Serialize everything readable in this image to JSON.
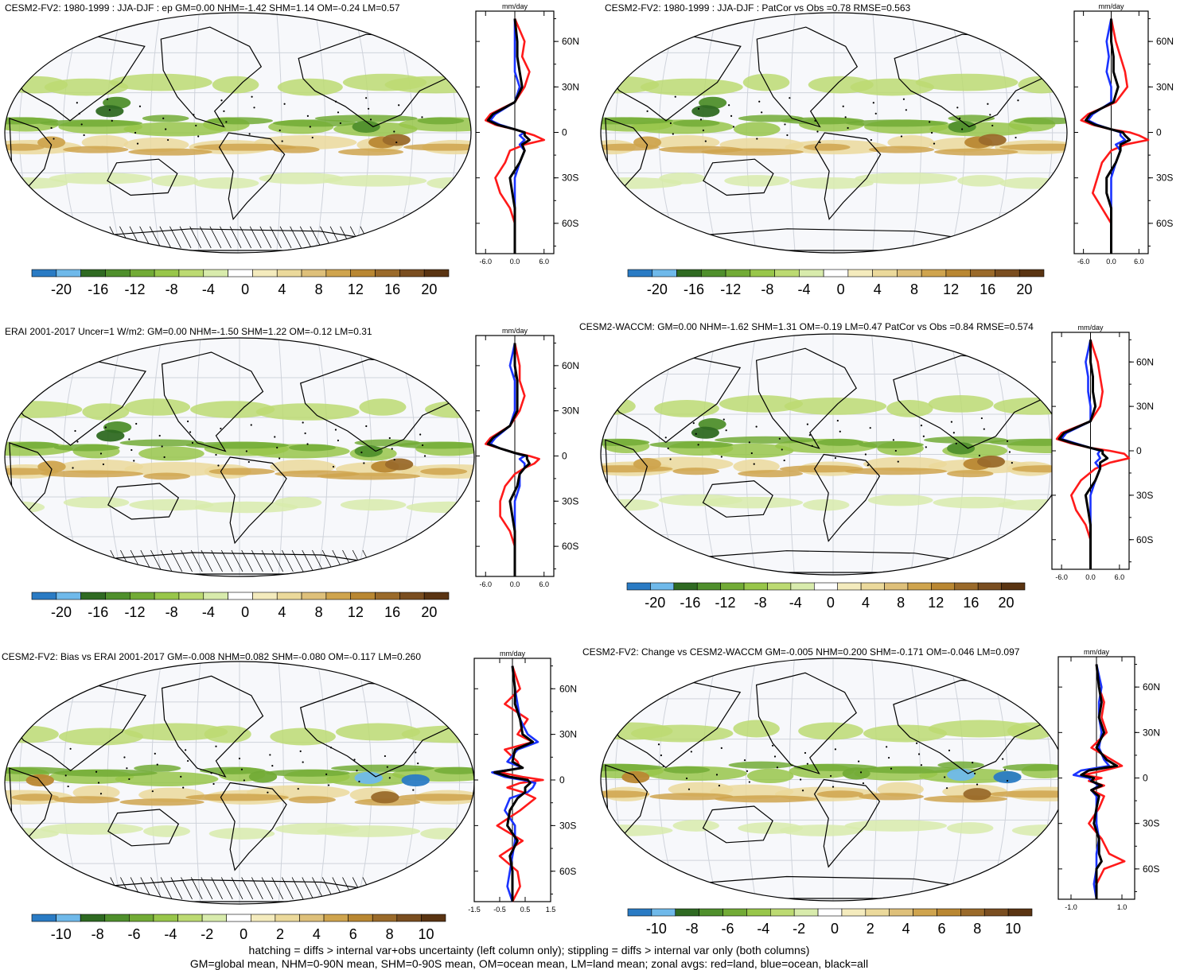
{
  "figure": {
    "footer": [
      "hatching = diffs > internal var+obs uncertainty (left column only); stippling = diffs > internal var only (both columns)",
      "GM=global mean, NHM=0-90N mean, SHM=0-90S mean, OM=ocean mean, LM=land mean; zonal avgs: red=land, blue=ocean, black=all"
    ],
    "zonal_units": "mm/day",
    "lat_ticks": [
      "60N",
      "30N",
      "0",
      "30S",
      "60S"
    ],
    "line_colors": {
      "land": "#ff1a1a",
      "ocean": "#1a33ff",
      "all": "#000000"
    },
    "palette": [
      "#2a7bc4",
      "#6fb9ea",
      "#2f6a22",
      "#4f8f2c",
      "#72ab36",
      "#98c64a",
      "#bcda72",
      "#d8ebac",
      "#ffffff",
      "#f4ebbd",
      "#ebd99b",
      "#dec07a",
      "#cfa44e",
      "#b98732",
      "#9a6a2a",
      "#7a4e20",
      "#5a3412"
    ]
  },
  "chart_data": [
    {
      "type": "heatmap",
      "title": "CESM2-FV2: 1980-1999 : JJA-DJF : ep GM=0.00 NHM=-1.42 SHM=1.14 OM=-0.24 LM=0.57",
      "colorbar_labels": [
        "-20",
        "-16",
        "-12",
        "-8",
        "-4",
        "0",
        "4",
        "8",
        "12",
        "16",
        "20"
      ],
      "zonal": {
        "xticks": [
          "-6.0",
          "0.0",
          "6.0"
        ],
        "xlim": [
          -8,
          8
        ],
        "ylim": [
          -80,
          80
        ],
        "lat": [
          75,
          60,
          50,
          40,
          30,
          20,
          12,
          8,
          5,
          2,
          0,
          -2,
          -5,
          -8,
          -12,
          -20,
          -30,
          -40,
          -50,
          -60,
          -70,
          -80
        ],
        "series": [
          {
            "name": "land",
            "values": [
              0,
              2,
              1.5,
              3,
              2,
              0,
              -5,
              -6,
              -4,
              0,
              2,
              4,
              6,
              2,
              -1,
              -2,
              -4,
              -3,
              -1,
              0,
              0,
              0
            ]
          },
          {
            "name": "ocean",
            "values": [
              0,
              0,
              0,
              0,
              1,
              0,
              -4,
              -5,
              -3,
              0,
              2,
              1,
              2,
              1,
              2,
              1,
              0,
              0,
              0,
              0,
              0,
              0
            ]
          },
          {
            "name": "all",
            "values": [
              0,
              0.5,
              0.5,
              1,
              1.5,
              0,
              -4.5,
              -5.5,
              -3.5,
              0,
              2,
              2,
              3,
              1.5,
              2,
              1,
              -1,
              -0.5,
              0,
              0,
              0,
              0
            ]
          }
        ]
      }
    },
    {
      "type": "heatmap",
      "title": "CESM2-FV2: 1980-1999 : JJA-DJF : PatCor vs Obs =0.78 RMSE=0.563",
      "colorbar_labels": [
        "-20",
        "-16",
        "-12",
        "-8",
        "-4",
        "0",
        "4",
        "8",
        "12",
        "16",
        "20"
      ],
      "zonal": {
        "xticks": [
          "-6.0",
          "0.0",
          "6.0"
        ],
        "xlim": [
          -8,
          8
        ],
        "ylim": [
          -80,
          80
        ],
        "lat": [
          75,
          60,
          50,
          40,
          30,
          20,
          12,
          8,
          5,
          2,
          0,
          -2,
          -5,
          -8,
          -12,
          -20,
          -30,
          -40,
          -50,
          -60,
          -70,
          -80
        ],
        "series": [
          {
            "name": "land",
            "values": [
              0,
              1,
              2,
              3,
              3.5,
              1,
              -5,
              -6.5,
              -4,
              0,
              4,
              6,
              8,
              3,
              0,
              -2,
              -3,
              -4,
              -2,
              0,
              0,
              0
            ]
          },
          {
            "name": "ocean",
            "values": [
              0,
              -1,
              -0.5,
              -1,
              0,
              0,
              -4,
              -5,
              -3,
              0,
              2,
              2,
              3,
              1,
              2,
              1,
              0,
              0,
              0,
              0,
              0,
              0
            ]
          },
          {
            "name": "all",
            "values": [
              0,
              0,
              0.5,
              0.5,
              1.5,
              0.5,
              -4.5,
              -5.5,
              -3.5,
              0,
              2.5,
              3,
              4,
              2,
              2,
              1,
              -1,
              -1,
              0,
              0,
              0,
              0
            ]
          }
        ]
      }
    },
    {
      "type": "heatmap",
      "title": "ERAI 2001-2017 Uncer=1 W/m2: GM=0.00 NHM=-1.50 SHM=1.22 OM=-0.12 LM=0.31",
      "colorbar_labels": [
        "-20",
        "-16",
        "-12",
        "-8",
        "-4",
        "0",
        "4",
        "8",
        "12",
        "16",
        "20"
      ],
      "zonal": {
        "xticks": [
          "-6.0",
          "0.0",
          "6.0"
        ],
        "xlim": [
          -8,
          8
        ],
        "ylim": [
          -80,
          80
        ],
        "lat": [
          75,
          60,
          50,
          40,
          30,
          20,
          12,
          8,
          5,
          2,
          0,
          -2,
          -5,
          -8,
          -12,
          -20,
          -30,
          -40,
          -50,
          -60,
          -70,
          -80
        ],
        "series": [
          {
            "name": "land",
            "values": [
              0,
              1,
              1,
              2,
              1,
              -1,
              -5,
              -6,
              -3,
              0,
              3,
              5,
              4,
              2,
              0,
              -2,
              -3,
              -3,
              -1,
              0,
              0,
              0
            ]
          },
          {
            "name": "ocean",
            "values": [
              0,
              -1,
              0,
              0,
              0,
              -1,
              -4,
              -5,
              -3,
              0,
              2,
              1,
              2,
              2,
              1,
              1,
              0,
              0,
              0,
              0,
              0,
              0
            ]
          },
          {
            "name": "all",
            "values": [
              0,
              0,
              0.5,
              0.5,
              0.5,
              -1,
              -4.5,
              -5.5,
              -3,
              0,
              2.5,
              2.5,
              3,
              2,
              1,
              0.5,
              -1,
              -0.5,
              0,
              0,
              0,
              0
            ]
          }
        ]
      }
    },
    {
      "type": "heatmap",
      "title": "CESM2-WACCM: GM=0.00 NHM=-1.62 SHM=1.31 OM=-0.19 LM=0.47 PatCor vs Obs =0.84 RMSE=0.574",
      "colorbar_labels": [
        "-20",
        "-16",
        "-12",
        "-8",
        "-4",
        "0",
        "4",
        "8",
        "12",
        "16",
        "20"
      ],
      "zonal": {
        "xticks": [
          "-6.0",
          "0.0",
          "6.0"
        ],
        "xlim": [
          -8,
          8
        ],
        "ylim": [
          -80,
          80
        ],
        "lat": [
          75,
          60,
          50,
          40,
          30,
          20,
          12,
          8,
          5,
          2,
          0,
          -2,
          -5,
          -8,
          -12,
          -20,
          -30,
          -40,
          -50,
          -60,
          -70,
          -80
        ],
        "series": [
          {
            "name": "land",
            "values": [
              0,
              1.5,
              2,
              2.5,
              2,
              0,
              -6,
              -7,
              -4,
              0,
              4,
              7,
              8,
              4,
              1,
              -2,
              -4,
              -3,
              -1,
              0,
              0,
              0
            ]
          },
          {
            "name": "ocean",
            "values": [
              0,
              -1,
              -0.5,
              -0.5,
              0,
              0,
              -5,
              -6,
              -3,
              0,
              2,
              1.5,
              2,
              1,
              2,
              1,
              0,
              0,
              0,
              0,
              0,
              0
            ]
          },
          {
            "name": "all",
            "values": [
              0,
              0,
              0.5,
              0.5,
              1,
              0,
              -5.5,
              -6.5,
              -3.5,
              0,
              2.5,
              2.5,
              3.5,
              2,
              2,
              1,
              -1,
              -0.5,
              0,
              0,
              0,
              0
            ]
          }
        ]
      }
    },
    {
      "type": "heatmap",
      "title": "CESM2-FV2: Bias vs ERAI 2001-2017 GM=-0.008 NHM=0.082 SHM=-0.080 OM=-0.117 LM=0.260",
      "colorbar_labels": [
        "-10",
        "-8",
        "-6",
        "-4",
        "-2",
        "0",
        "2",
        "4",
        "6",
        "8",
        "10"
      ],
      "zonal": {
        "xticks": [
          "-1.5",
          "-0.5",
          "0.5",
          "1.5"
        ],
        "xlim": [
          -1.5,
          1.5
        ],
        "ylim": [
          -80,
          80
        ],
        "lat": [
          75,
          60,
          50,
          40,
          30,
          25,
          20,
          12,
          8,
          5,
          2,
          0,
          -2,
          -5,
          -8,
          -12,
          -20,
          -30,
          -40,
          -50,
          -60,
          -70,
          -80
        ],
        "series": [
          {
            "name": "land",
            "values": [
              0,
              0.3,
              -0.3,
              0.6,
              0.2,
              0.8,
              -0.3,
              0.2,
              0.3,
              -0.5,
              0.4,
              1.2,
              0.3,
              -0.2,
              0.4,
              0.9,
              0.3,
              -0.6,
              0.4,
              -0.5,
              0.2,
              0.3,
              0
            ]
          },
          {
            "name": "ocean",
            "values": [
              0,
              0.1,
              0.2,
              0.3,
              0.6,
              1.0,
              0.2,
              -0.2,
              0.4,
              -0.8,
              -0.3,
              0.4,
              0.9,
              0.8,
              0.6,
              -0.1,
              -0.3,
              0.1,
              0.1,
              0,
              -0.1,
              -0.2,
              0
            ]
          },
          {
            "name": "all",
            "values": [
              0,
              0.1,
              0.1,
              0.3,
              0.4,
              0.8,
              0.1,
              0.0,
              0.4,
              -0.7,
              -0.1,
              0.6,
              0.7,
              0.5,
              0.5,
              0.2,
              -0.1,
              -0.2,
              0.2,
              -0.1,
              0,
              0,
              0
            ]
          }
        ]
      }
    },
    {
      "type": "heatmap",
      "title": "CESM2-FV2: Change vs CESM2-WACCM GM=-0.005 NHM=0.200 SHM=-0.171 OM=-0.046 LM=0.097",
      "colorbar_labels": [
        "-10",
        "-8",
        "-6",
        "-4",
        "-2",
        "0",
        "2",
        "4",
        "6",
        "8",
        "10"
      ],
      "zonal": {
        "xticks": [
          "-1.0",
          "1.0"
        ],
        "xlim": [
          -1.5,
          1.5
        ],
        "ylim": [
          -80,
          80
        ],
        "lat": [
          75,
          60,
          50,
          40,
          30,
          20,
          12,
          8,
          5,
          2,
          0,
          -2,
          -5,
          -8,
          -12,
          -20,
          -30,
          -40,
          -50,
          -55,
          -60,
          -70,
          -80
        ],
        "series": [
          {
            "name": "land",
            "values": [
              0,
              0.1,
              0.3,
              0.2,
              0.4,
              -0.2,
              0.6,
              1.0,
              0.3,
              -0.5,
              0.2,
              -0.3,
              0.3,
              -0.2,
              0.3,
              0.1,
              -0.3,
              0.2,
              0.5,
              1.1,
              0.3,
              0,
              0
            ]
          },
          {
            "name": "ocean",
            "values": [
              0,
              0.2,
              0.1,
              0.1,
              0.2,
              0.1,
              0.3,
              0.5,
              -0.6,
              -0.9,
              -0.3,
              -0.2,
              0.1,
              -0.2,
              0,
              0,
              0,
              0.1,
              0,
              0,
              0,
              -0.1,
              0
            ]
          },
          {
            "name": "all",
            "values": [
              0,
              0.1,
              0.2,
              0.1,
              0.3,
              0,
              0.4,
              0.8,
              -0.3,
              -0.6,
              -0.1,
              -0.2,
              0.2,
              -0.2,
              0.1,
              0,
              -0.1,
              0.1,
              0.1,
              0.2,
              0,
              0,
              0
            ]
          }
        ]
      }
    }
  ]
}
